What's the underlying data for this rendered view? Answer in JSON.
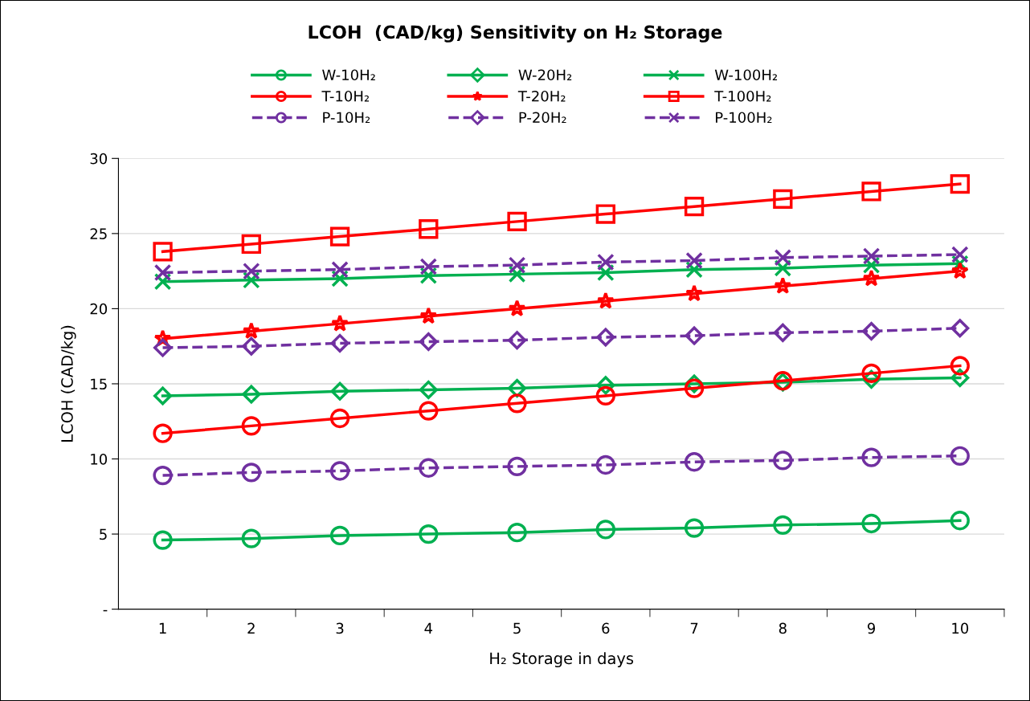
{
  "chart_data": {
    "type": "line",
    "title": "LCOH  (CAD/kg) Sensitivity on H₂ Storage",
    "xlabel": "H₂ Storage in days",
    "ylabel": "LCOH (CAD/kg)",
    "categories": [
      "1",
      "2",
      "3",
      "4",
      "5",
      "6",
      "7",
      "8",
      "9",
      "10"
    ],
    "ylim": [
      0,
      30
    ],
    "yticks": [
      {
        "value": 0,
        "label": "-"
      },
      5,
      10,
      15,
      20,
      25,
      30
    ],
    "grid": "y",
    "legend": "top",
    "series": [
      {
        "name": "W-10H₂",
        "color": "#00b050",
        "marker": "circle",
        "line_style": "solid",
        "values": [
          4.6,
          4.7,
          4.9,
          5.0,
          5.1,
          5.3,
          5.4,
          5.6,
          5.7,
          5.9
        ]
      },
      {
        "name": "W-20H₂",
        "color": "#00b050",
        "marker": "diamond",
        "line_style": "solid",
        "values": [
          14.2,
          14.3,
          14.5,
          14.6,
          14.7,
          14.9,
          15.0,
          15.1,
          15.3,
          15.4
        ]
      },
      {
        "name": "W-100H₂",
        "color": "#00b050",
        "marker": "cross",
        "line_style": "solid",
        "values": [
          21.8,
          21.9,
          22.0,
          22.2,
          22.3,
          22.4,
          22.6,
          22.7,
          22.9,
          23.0
        ]
      },
      {
        "name": "T-10H₂",
        "color": "#ff0000",
        "marker": "circle",
        "line_style": "solid",
        "values": [
          11.7,
          12.2,
          12.7,
          13.2,
          13.7,
          14.2,
          14.7,
          15.2,
          15.7,
          16.2
        ]
      },
      {
        "name": "T-20H₂",
        "color": "#ff0000",
        "marker": "star",
        "line_style": "solid",
        "values": [
          18.0,
          18.5,
          19.0,
          19.5,
          20.0,
          20.5,
          21.0,
          21.5,
          22.0,
          22.5
        ]
      },
      {
        "name": "T-100H₂",
        "color": "#ff0000",
        "marker": "square",
        "line_style": "solid",
        "values": [
          23.8,
          24.3,
          24.8,
          25.3,
          25.8,
          26.3,
          26.8,
          27.3,
          27.8,
          28.3
        ]
      },
      {
        "name": "P-10H₂",
        "color": "#7030a0",
        "marker": "circle",
        "line_style": "dashed",
        "values": [
          8.9,
          9.1,
          9.2,
          9.4,
          9.5,
          9.6,
          9.8,
          9.9,
          10.1,
          10.2
        ]
      },
      {
        "name": "P-20H₂",
        "color": "#7030a0",
        "marker": "diamond",
        "line_style": "dashed",
        "values": [
          17.4,
          17.5,
          17.7,
          17.8,
          17.9,
          18.1,
          18.2,
          18.4,
          18.5,
          18.7
        ]
      },
      {
        "name": "P-100H₂",
        "color": "#7030a0",
        "marker": "cross",
        "line_style": "dashed",
        "values": [
          22.4,
          22.5,
          22.6,
          22.8,
          22.9,
          23.1,
          23.2,
          23.4,
          23.5,
          23.6
        ]
      }
    ]
  }
}
